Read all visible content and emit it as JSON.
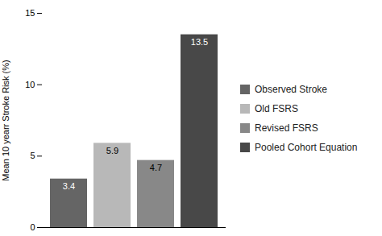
{
  "chart_data": {
    "type": "bar",
    "categories": [
      "Observed Stroke",
      "Old FSRS",
      "Revised FSRS",
      "Pooled Cohort Equation"
    ],
    "values": [
      3.4,
      5.9,
      4.7,
      13.5
    ],
    "colors": [
      "#656565",
      "#b8b8b8",
      "#888888",
      "#484848"
    ],
    "ylabel": "Mean 10 yearr Stroke Risk (%)",
    "ylim": [
      0,
      15
    ],
    "yticks": [
      0,
      5,
      10,
      15
    ],
    "data_labels": true,
    "tick_labels": "y",
    "legend": "right",
    "grid": false
  }
}
